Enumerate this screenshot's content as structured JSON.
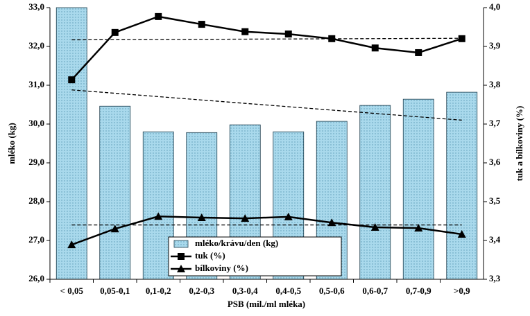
{
  "chart_data": {
    "type": "combo",
    "x_label": "PSB (mil./ml mléka)",
    "y_label": "mléko (kg)",
    "y2_label": "tuk a bílkoviny (%)",
    "categories": [
      "< 0,05",
      "0,05-0,1",
      "0,1-0,2",
      "0,2-0,3",
      "0,3-0,4",
      "0,4-0,5",
      "0,5-0,6",
      "0,6-0,7",
      "0,7-0,9",
      ">0,9"
    ],
    "series": [
      {
        "name": "mléko/krávu/den (kg)",
        "type": "bar",
        "axis": "y",
        "color": "#a9d9ec",
        "values": [
          33.0,
          30.46,
          29.8,
          29.78,
          29.98,
          29.8,
          30.07,
          30.48,
          30.64,
          30.82
        ]
      },
      {
        "name": "tuk (%)",
        "type": "line",
        "marker": "square",
        "axis": "y2",
        "color": "#000000",
        "values": [
          3.814,
          3.936,
          3.977,
          3.957,
          3.938,
          3.932,
          3.92,
          3.896,
          3.884,
          3.92
        ]
      },
      {
        "name": "bílkoviny (%)",
        "type": "line",
        "marker": "triangle",
        "axis": "y2",
        "color": "#000000",
        "values": [
          3.389,
          3.43,
          3.462,
          3.459,
          3.457,
          3.461,
          3.446,
          3.434,
          3.432,
          3.416
        ]
      }
    ],
    "trend_lines": [
      {
        "axis": "y",
        "values": [
          30.88,
          30.1
        ]
      },
      {
        "axis": "y2",
        "values": [
          3.917,
          3.921
        ]
      },
      {
        "axis": "y2",
        "values": [
          3.44,
          3.44
        ]
      }
    ],
    "ylim": [
      26,
      33
    ],
    "yticks": [
      {
        "value": 26,
        "label": "26,0"
      },
      {
        "value": 27,
        "label": "27,0"
      },
      {
        "value": 28,
        "label": "28,0"
      },
      {
        "value": 29,
        "label": "29,0"
      },
      {
        "value": 30,
        "label": "30,0"
      },
      {
        "value": 31,
        "label": "31,0"
      },
      {
        "value": 32,
        "label": "32,0"
      },
      {
        "value": 33,
        "label": "33,0"
      }
    ],
    "y2lim": [
      3.3,
      4.0
    ],
    "y2ticks": [
      {
        "value": 3.3,
        "label": "3,3"
      },
      {
        "value": 3.4,
        "label": "3,4"
      },
      {
        "value": 3.5,
        "label": "3,5"
      },
      {
        "value": 3.6,
        "label": "3,6"
      },
      {
        "value": 3.7,
        "label": "3,7"
      },
      {
        "value": 3.8,
        "label": "3,8"
      },
      {
        "value": 3.9,
        "label": "3,9"
      },
      {
        "value": 4.0,
        "label": "4,0"
      }
    ],
    "grid": false,
    "legend": "bottom-center"
  }
}
